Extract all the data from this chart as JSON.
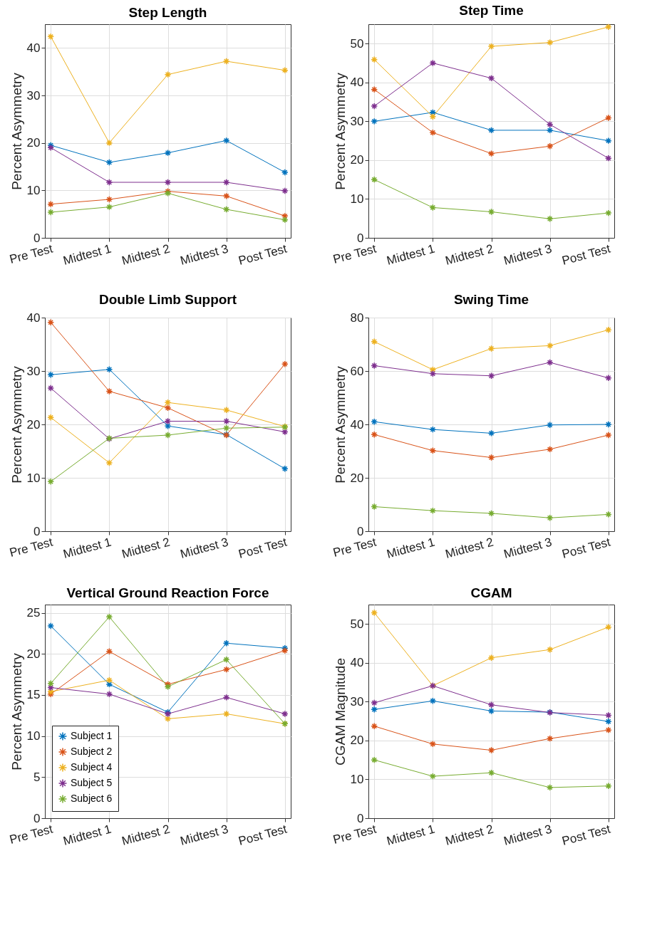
{
  "chart_data": [
    {
      "type": "line",
      "title": "Step Length",
      "ylabel": "Percent Asymmetry",
      "categories": [
        "Pre Test",
        "Midtest 1",
        "Midtest 2",
        "Midtest 3",
        "Post Test"
      ],
      "ylim": [
        0,
        45
      ],
      "yticks": [
        0,
        10,
        20,
        30,
        40
      ],
      "grid": true,
      "marker": "cross",
      "series": [
        {
          "color": "#0072bd",
          "values": [
            19.5,
            15.9,
            17.9,
            20.5,
            13.8
          ]
        },
        {
          "color": "#d95319",
          "values": [
            7.1,
            8.1,
            9.8,
            8.8,
            4.6
          ]
        },
        {
          "color": "#edb120",
          "values": [
            42.4,
            20.0,
            34.4,
            37.2,
            35.3
          ]
        },
        {
          "color": "#7e2f8e",
          "values": [
            19.0,
            11.7,
            11.7,
            11.7,
            9.9
          ]
        },
        {
          "color": "#77ac30",
          "values": [
            5.4,
            6.5,
            9.4,
            6.0,
            3.8
          ]
        }
      ]
    },
    {
      "type": "line",
      "title": "Step Time",
      "ylabel": "Percent Asymmetry",
      "categories": [
        "Pre Test",
        "Midtest 1",
        "Midtest 2",
        "Midtest 3",
        "Post Test"
      ],
      "ylim": [
        0,
        55
      ],
      "yticks": [
        0,
        10,
        20,
        30,
        40,
        50
      ],
      "grid": true,
      "marker": "cross",
      "series": [
        {
          "color": "#0072bd",
          "values": [
            30.0,
            32.3,
            27.7,
            27.7,
            25.0
          ]
        },
        {
          "color": "#d95319",
          "values": [
            38.2,
            27.1,
            21.7,
            23.6,
            30.9
          ]
        },
        {
          "color": "#edb120",
          "values": [
            45.9,
            31.2,
            49.3,
            50.3,
            54.3
          ]
        },
        {
          "color": "#7e2f8e",
          "values": [
            33.9,
            45.0,
            41.1,
            29.2,
            20.5
          ]
        },
        {
          "color": "#77ac30",
          "values": [
            15.0,
            7.8,
            6.7,
            4.9,
            6.4
          ]
        }
      ]
    },
    {
      "type": "line",
      "title": "Double Limb Support",
      "ylabel": "Percent Asymmetry",
      "categories": [
        "Pre Test",
        "Midtest 1",
        "Midtest 2",
        "Midtest 3",
        "Post Test"
      ],
      "ylim": [
        0,
        40
      ],
      "yticks": [
        0,
        10,
        20,
        30,
        40
      ],
      "grid": true,
      "marker": "cross",
      "series": [
        {
          "color": "#0072bd",
          "values": [
            29.3,
            30.3,
            19.7,
            18.1,
            11.7
          ]
        },
        {
          "color": "#d95319",
          "values": [
            39.1,
            26.2,
            23.1,
            18.0,
            31.3
          ]
        },
        {
          "color": "#edb120",
          "values": [
            21.3,
            12.8,
            24.1,
            22.7,
            19.6
          ]
        },
        {
          "color": "#7e2f8e",
          "values": [
            26.8,
            17.3,
            20.6,
            20.6,
            18.6
          ]
        },
        {
          "color": "#77ac30",
          "values": [
            9.3,
            17.4,
            18.0,
            19.3,
            19.5
          ]
        }
      ]
    },
    {
      "type": "line",
      "title": "Swing Time",
      "ylabel": "Percent Asymmetry",
      "categories": [
        "Pre Test",
        "Midtest 1",
        "Midtest 2",
        "Midtest 3",
        "Post Test"
      ],
      "ylim": [
        0,
        80
      ],
      "yticks": [
        0,
        20,
        40,
        60,
        80
      ],
      "grid": true,
      "marker": "cross",
      "series": [
        {
          "color": "#0072bd",
          "values": [
            41.0,
            38.1,
            36.7,
            39.8,
            40.0
          ]
        },
        {
          "color": "#d95319",
          "values": [
            36.2,
            30.2,
            27.6,
            30.7,
            36.0
          ]
        },
        {
          "color": "#edb120",
          "values": [
            71.0,
            60.5,
            68.4,
            69.5,
            75.4
          ]
        },
        {
          "color": "#7e2f8e",
          "values": [
            62.0,
            59.0,
            58.2,
            63.2,
            57.4
          ]
        },
        {
          "color": "#77ac30",
          "values": [
            9.2,
            7.7,
            6.7,
            5.0,
            6.3
          ]
        }
      ]
    },
    {
      "type": "line",
      "title": "Vertical Ground Reaction Force",
      "ylabel": "Percent Asymmetry",
      "categories": [
        "Pre Test",
        "Midtest 1",
        "Midtest 2",
        "Midtest 3",
        "Post Test"
      ],
      "ylim": [
        0,
        26
      ],
      "yticks": [
        0,
        5,
        10,
        15,
        20,
        25
      ],
      "grid": true,
      "marker": "cross",
      "legend": "bottom left",
      "series": [
        {
          "name": "Subject 1",
          "color": "#0072bd",
          "values": [
            23.4,
            16.3,
            12.9,
            21.3,
            20.7
          ]
        },
        {
          "name": "Subject 2",
          "color": "#d95319",
          "values": [
            15.1,
            20.3,
            16.3,
            18.1,
            20.4
          ]
        },
        {
          "name": "Subject 4",
          "color": "#edb120",
          "values": [
            15.4,
            16.8,
            12.1,
            12.7,
            11.5
          ]
        },
        {
          "name": "Subject 5",
          "color": "#7e2f8e",
          "values": [
            15.9,
            15.1,
            12.7,
            14.7,
            12.7
          ]
        },
        {
          "name": "Subject 6",
          "color": "#77ac30",
          "values": [
            16.4,
            24.5,
            16.0,
            19.3,
            11.5
          ]
        }
      ]
    },
    {
      "type": "line",
      "title": "CGAM",
      "ylabel": "CGAM Magnitude",
      "categories": [
        "Pre Test",
        "Midtest 1",
        "Midtest 2",
        "Midtest 3",
        "Post Test"
      ],
      "ylim": [
        0,
        55
      ],
      "yticks": [
        0,
        10,
        20,
        30,
        40,
        50
      ],
      "grid": true,
      "marker": "cross",
      "series": [
        {
          "color": "#0072bd",
          "values": [
            28.0,
            30.2,
            27.6,
            27.3,
            24.9
          ]
        },
        {
          "color": "#d95319",
          "values": [
            23.7,
            19.1,
            17.5,
            20.5,
            22.7
          ]
        },
        {
          "color": "#edb120",
          "values": [
            52.9,
            34.1,
            41.3,
            43.4,
            49.2
          ]
        },
        {
          "color": "#7e2f8e",
          "values": [
            29.7,
            34.1,
            29.2,
            27.2,
            26.5
          ]
        },
        {
          "color": "#77ac30",
          "values": [
            15.0,
            10.8,
            11.7,
            7.9,
            8.3
          ]
        }
      ]
    }
  ]
}
